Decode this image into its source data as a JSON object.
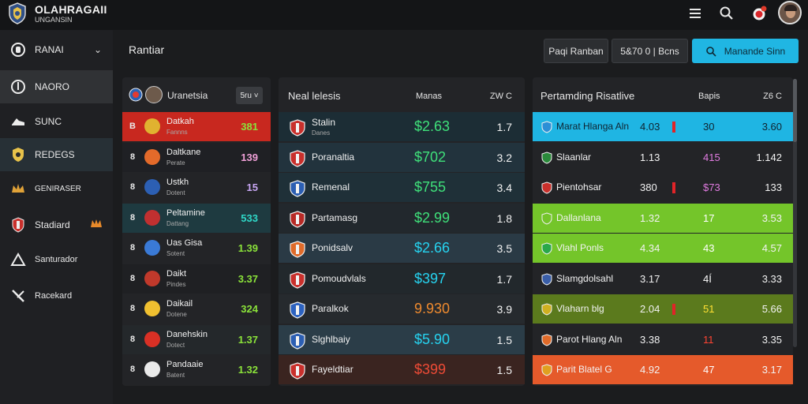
{
  "app": {
    "title": "OLAHRAGAII",
    "subtitle": "UNGANSIN"
  },
  "icons": {
    "logo": "shield-logo-icon",
    "menu": "menu-icon",
    "search": "search-icon",
    "alert": "alert-icon",
    "avatar": "user-avatar"
  },
  "sidebar": {
    "items": [
      {
        "label": "RANAI",
        "icon": "helmet-icon"
      },
      {
        "label": "NAORO",
        "icon": "pin-icon"
      },
      {
        "label": "SUNC",
        "icon": "sneaker-icon"
      },
      {
        "label": "REDEGS",
        "icon": "shield-icon"
      },
      {
        "label": "GENIRASER",
        "icon": "crown-icon"
      },
      {
        "label": "Stadiard",
        "icon": "crest-icon"
      },
      {
        "label": "Santurador",
        "icon": "triangle-icon"
      },
      {
        "label": "Racekard",
        "icon": "whistle-icon"
      }
    ]
  },
  "main": {
    "title": "Rantiar",
    "buttons": {
      "btn1": "Paqi Ranban",
      "btn2": "5&70 0 | Bcns",
      "btn3": "Manande Sinn"
    }
  },
  "panel1": {
    "header_label": "Uranetsia",
    "dropdown": "5ru",
    "rows": [
      {
        "crest": "B",
        "name": "Datkah",
        "sub": "Fannns",
        "value": "381",
        "value_color": "#8be33a"
      },
      {
        "crest": "8",
        "name": "Daltkane",
        "sub": "Perate",
        "value": "139",
        "value_color": "#f0a0d8"
      },
      {
        "crest": "8",
        "name": "Ustkh",
        "sub": "Dotent",
        "value": "15",
        "value_color": "#c9a7f5"
      },
      {
        "crest": "8",
        "name": "Peltamine",
        "sub": "Dattang",
        "value": "533",
        "value_color": "#2fd8c8"
      },
      {
        "crest": "8",
        "name": "Uas Gisa",
        "sub": "Sotent",
        "value": "1.39",
        "value_color": "#8be33a"
      },
      {
        "crest": "8",
        "name": "Daikt",
        "sub": "Pindes",
        "value": "3.37",
        "value_color": "#8be33a"
      },
      {
        "crest": "8",
        "name": "Daikail",
        "sub": "Dotene",
        "value": "324",
        "value_color": "#8be33a"
      },
      {
        "crest": "8",
        "name": "Danehskin",
        "sub": "Dotect",
        "value": "1.37",
        "value_color": "#8be33a"
      },
      {
        "crest": "8",
        "name": "Pandaaie",
        "sub": "Batent",
        "value": "1.32",
        "value_color": "#8be33a"
      }
    ]
  },
  "panel2": {
    "header_title": "Neal lelesis",
    "header_col2": "Manas",
    "header_col3": "ZW C",
    "rows": [
      {
        "name": "Stalin",
        "sub": "Danes",
        "price": "$2.63",
        "price_color": "#3fe07a",
        "odd": "1.7"
      },
      {
        "name": "Poranaltia",
        "sub": "",
        "price": "$702",
        "price_color": "#3fe07a",
        "odd": "3.2"
      },
      {
        "name": "Remenal",
        "sub": "",
        "price": "$755",
        "price_color": "#3fe07a",
        "odd": "3.4"
      },
      {
        "name": "Partamasg",
        "sub": "",
        "price": "$2.99",
        "price_color": "#3fe07a",
        "odd": "1.8"
      },
      {
        "name": "Ponidsalv",
        "sub": "",
        "price": "$2.66",
        "price_color": "#26d3f0",
        "odd": "3.5"
      },
      {
        "name": "Pomoudvlals",
        "sub": "",
        "price": "$397",
        "price_color": "#26d3f0",
        "odd": "1.7"
      },
      {
        "name": "Paralkok",
        "sub": "",
        "price": "9.930",
        "price_color": "#ef8a2e",
        "odd": "3.9"
      },
      {
        "name": "Slghlbaiy",
        "sub": "",
        "price": "$5.90",
        "price_color": "#26d3f0",
        "odd": "1.5"
      },
      {
        "name": "Fayeldtiar",
        "sub": "",
        "price": "$399",
        "price_color": "#ef4b36",
        "odd": "1.5"
      }
    ]
  },
  "panel3": {
    "header_title": "Pertamding Risatlive",
    "header_col2": "Bapis",
    "header_col3": "Z6 C",
    "rows": [
      {
        "name": "Marat Hlanga Aln",
        "c1": "4.03",
        "flag": true,
        "c2": "30",
        "c3": "3.60",
        "bg": "#1fb5e3",
        "c2_color": "#ffffff"
      },
      {
        "name": "Slaanlar",
        "c1": "1.13",
        "flag": false,
        "c2": "415",
        "c3": "1.142",
        "bg": "#232427",
        "c2_color": "#e07be0"
      },
      {
        "name": "Pientohsar",
        "c1": "380",
        "flag": true,
        "c2": "$73",
        "c3": "133",
        "bg": "#232427",
        "c2_color": "#e07be0"
      },
      {
        "name": "Dallanlana",
        "c1": "1.32",
        "flag": false,
        "c2": "17",
        "c3": "3.53",
        "bg": "#74c52a",
        "c2_color": "#ffffff"
      },
      {
        "name": "Vlahl Ponls",
        "c1": "4.34",
        "flag": false,
        "c2": "43",
        "c3": "4.57",
        "bg": "#74c52a",
        "c2_color": "#ffffff"
      },
      {
        "name": "Slamgdolsahl",
        "c1": "3.17",
        "flag": false,
        "c2": "4Í",
        "c3": "3.33",
        "bg": "#232427",
        "c2_color": "#ffffff"
      },
      {
        "name": "Vlaharn blg",
        "c1": "2.04",
        "flag": true,
        "c2": "51",
        "c3": "5.66",
        "bg": "#5b7a1d",
        "c2_color": "#ffe033"
      },
      {
        "name": "Parot Hlang Aln",
        "c1": "3.38",
        "flag": false,
        "c2": "11",
        "c3": "3.35",
        "bg": "#232427",
        "c2_color": "#ff4433"
      },
      {
        "name": "Parit Blatel G",
        "c1": "4.92",
        "flag": false,
        "c2": "47",
        "c3": "3.17",
        "bg": "#e55a2b",
        "c2_color": "#ffffff"
      }
    ]
  }
}
